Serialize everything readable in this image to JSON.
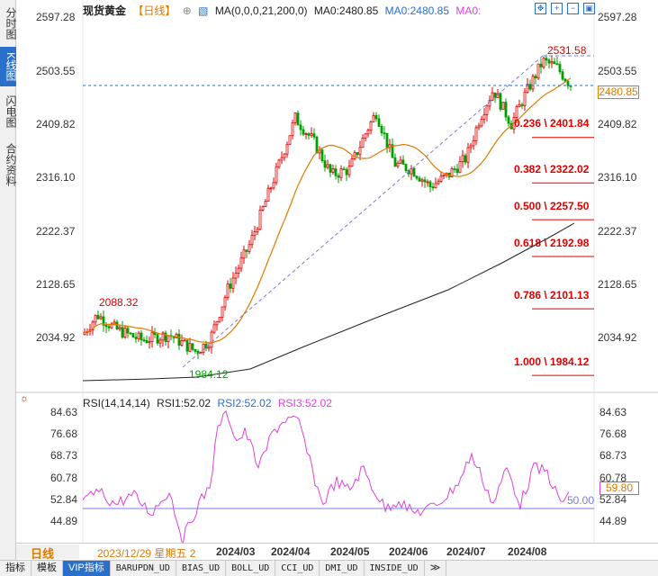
{
  "side_tabs": [
    {
      "label": "分时图",
      "active": false
    },
    {
      "label": "K线图",
      "active": true
    },
    {
      "label": "闪电图",
      "active": false
    },
    {
      "label": "合约资料",
      "active": false
    }
  ],
  "header": {
    "title": "现货黄金",
    "period": "【日线】",
    "ma_params": "MA(0,0,0,21,200,0)",
    "ma0_a": "MA0:2480.85",
    "ma0_b": "MA0:2480.85",
    "ma0_c": "MA0:"
  },
  "toolbar_icons": [
    "move-icon",
    "zoom-in-icon",
    "zoom-out-icon",
    "settings-icon"
  ],
  "main_axis": {
    "labels": [
      "2597.28",
      "2503.55",
      "2409.82",
      "2316.10",
      "2222.37",
      "2128.65",
      "2034.92"
    ],
    "current_price": "2480.85"
  },
  "annotations": {
    "high": "2531.58",
    "low": "1984.12",
    "left_peak": "2088.32"
  },
  "fibonacci": [
    {
      "label": "0.236 \\ 2401.84",
      "value": 2401.84
    },
    {
      "label": "0.382 \\ 2322.02",
      "value": 2322.02
    },
    {
      "label": "0.500 \\ 2257.50",
      "value": 2257.5
    },
    {
      "label": "0.618 \\ 2192.98",
      "value": 2192.98
    },
    {
      "label": "0.786 \\ 2101.13",
      "value": 2101.13
    },
    {
      "label": "1.000 \\ 1984.12",
      "value": 1984.12
    }
  ],
  "rsi": {
    "header_params": "RSI(14,14,14)",
    "rsi1": "RSI1:52.02",
    "rsi2": "RSI2:52.02",
    "rsi3": "RSI3:52.02",
    "labels": [
      "84.63",
      "76.68",
      "68.73",
      "60.78",
      "52.84",
      "44.89"
    ],
    "current": "59.80",
    "reference": "50.00"
  },
  "x_axis": {
    "cursor_label": "2023/12/29 星期五 2",
    "labels": [
      "2024/03",
      "2024/04",
      "2024/05",
      "2024/06",
      "2024/07",
      "2024/08"
    ]
  },
  "period_button": "日线",
  "bottom_tabs": [
    {
      "label": "指标",
      "active": false
    },
    {
      "label": "模板",
      "active": false
    },
    {
      "label": "VIP指标",
      "active": true
    },
    {
      "label": "BARUPDN_UD",
      "active": false
    },
    {
      "label": "BIAS_UD",
      "active": false
    },
    {
      "label": "BOLL_UD",
      "active": false
    },
    {
      "label": "CCI_UD",
      "active": false
    },
    {
      "label": "DMI_UD",
      "active": false
    },
    {
      "label": "INSIDE_UD",
      "active": false
    },
    {
      "label": "≫",
      "active": false
    }
  ],
  "colors": {
    "up": "#e00000",
    "down": "#00a000",
    "ma21": "#e07b00",
    "ma200": "#222222",
    "rsi": "#e040e0",
    "fib": "#e00000",
    "current_line": "#2a6fc9"
  }
}
